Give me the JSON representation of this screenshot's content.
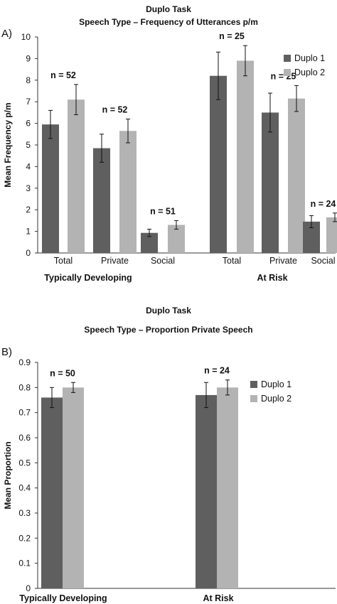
{
  "colors": {
    "duplo_1": "#5f5f5f",
    "duplo_2": "#b3b3b3",
    "error_bar": "#111111",
    "axis": "#333333"
  },
  "chart_data": [
    {
      "type": "bar",
      "panel_letter": "A)",
      "title": "Duplo Task",
      "subtitle": "Speech Type – Frequency of Utterances p/m",
      "ylabel": "Mean Frequency p/m",
      "xlabel": "",
      "ylim": [
        0,
        10
      ],
      "yticks": [
        "0",
        "1",
        "2",
        "3",
        "4",
        "5",
        "6",
        "7",
        "8",
        "9",
        "10"
      ],
      "ytick_values": [
        0,
        1,
        2,
        3,
        4,
        5,
        6,
        7,
        8,
        9,
        10
      ],
      "grid": false,
      "legend_position": "right",
      "groups": [
        {
          "label": "Typically Developing",
          "categories": [
            "Total",
            "Private",
            "Social"
          ],
          "n_labels": [
            "n = 52",
            "n = 52",
            "n = 51"
          ],
          "series": [
            {
              "name": "Duplo 1",
              "values": [
                5.95,
                4.85,
                0.93
              ],
              "errors": [
                0.65,
                0.65,
                0.17
              ]
            },
            {
              "name": "Duplo 2",
              "values": [
                7.1,
                5.65,
                1.3
              ],
              "errors": [
                0.7,
                0.55,
                0.2
              ]
            }
          ]
        },
        {
          "label": "At Risk",
          "categories": [
            "Total",
            "Private",
            "Social"
          ],
          "n_labels": [
            "n = 25",
            "n = 25",
            "n = 24"
          ],
          "series": [
            {
              "name": "Duplo 1",
              "values": [
                8.2,
                6.5,
                1.45
              ],
              "errors": [
                1.1,
                0.9,
                0.28
              ]
            },
            {
              "name": "Duplo 2",
              "values": [
                8.9,
                7.15,
                1.65
              ],
              "errors": [
                0.7,
                0.6,
                0.2
              ]
            }
          ]
        }
      ]
    },
    {
      "type": "bar",
      "panel_letter": "B)",
      "title": "Duplo Task",
      "subtitle": "Speech Type – Proportion Private Speech",
      "ylabel": "Mean Proportion",
      "xlabel": "",
      "ylim": [
        0,
        0.9
      ],
      "yticks": [
        "0",
        "0.1",
        "0.2",
        "0.3",
        "0.4",
        "0.5",
        "0.6",
        "0.7",
        "0.8",
        "0.9"
      ],
      "ytick_values": [
        0,
        0.1,
        0.2,
        0.3,
        0.4,
        0.5,
        0.6,
        0.7,
        0.8,
        0.9
      ],
      "grid": false,
      "legend_position": "right",
      "groups": [
        {
          "label": "Typically Developing",
          "categories": [
            ""
          ],
          "n_labels": [
            "n = 50"
          ],
          "series": [
            {
              "name": "Duplo 1",
              "values": [
                0.76
              ],
              "errors": [
                0.04
              ]
            },
            {
              "name": "Duplo 2",
              "values": [
                0.8
              ],
              "errors": [
                0.02
              ]
            }
          ]
        },
        {
          "label": "At Risk",
          "categories": [
            ""
          ],
          "n_labels": [
            "n = 24"
          ],
          "series": [
            {
              "name": "Duplo 1",
              "values": [
                0.77
              ],
              "errors": [
                0.05
              ]
            },
            {
              "name": "Duplo 2",
              "values": [
                0.8
              ],
              "errors": [
                0.03
              ]
            }
          ]
        }
      ]
    }
  ]
}
